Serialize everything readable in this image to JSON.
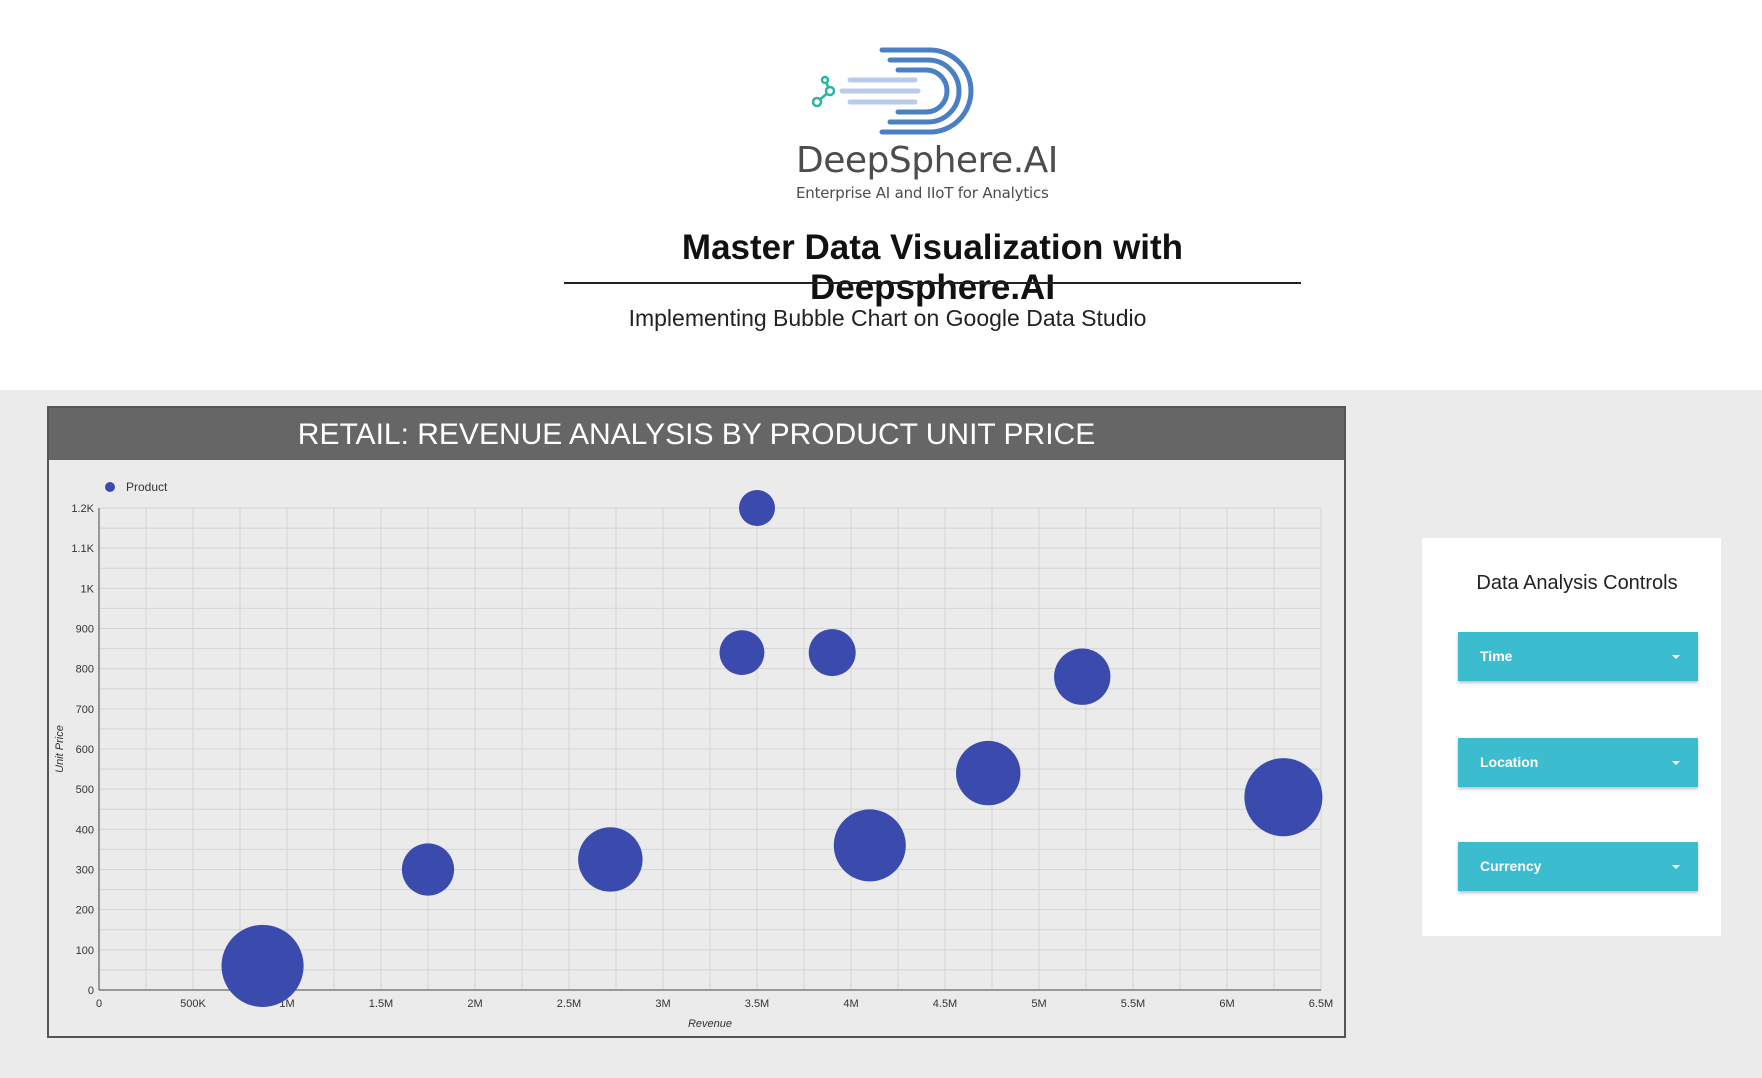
{
  "brand": {
    "logo_text": "DeepSphere.AI",
    "tagline": "Enterprise AI and IIoT for Analytics"
  },
  "header": {
    "title": "Master Data Visualization with Deepsphere.AI",
    "subtitle": "Implementing Bubble Chart on Google Data Studio"
  },
  "chart": {
    "header": "RETAIL: REVENUE ANALYSIS BY PRODUCT UNIT PRICE"
  },
  "chart_data": {
    "type": "scatter",
    "title": "RETAIL: REVENUE ANALYSIS BY PRODUCT UNIT PRICE",
    "xlabel": "Revenue",
    "ylabel": "Unit Price",
    "xlim": [
      0,
      6500000
    ],
    "ylim": [
      0,
      1200
    ],
    "grid": true,
    "legend_position": "top-left",
    "x_ticks": [
      0,
      500000,
      1000000,
      1500000,
      2000000,
      2500000,
      3000000,
      3500000,
      4000000,
      4500000,
      5000000,
      5500000,
      6000000,
      6500000
    ],
    "x_tick_labels": [
      "0",
      "500K",
      "1M",
      "1.5M",
      "2M",
      "2.5M",
      "3M",
      "3.5M",
      "4M",
      "4.5M",
      "5M",
      "5.5M",
      "6M",
      "6.5M"
    ],
    "y_ticks": [
      0,
      100,
      200,
      300,
      400,
      500,
      600,
      700,
      800,
      900,
      1000,
      1100,
      1200
    ],
    "y_tick_labels": [
      "0",
      "100",
      "200",
      "300",
      "400",
      "500",
      "600",
      "700",
      "800",
      "900",
      "1K",
      "1.1K",
      "1.2K"
    ],
    "series": [
      {
        "name": "Product",
        "color": "#3a4aad",
        "points": [
          {
            "x": 3500000,
            "y": 1200,
            "size": 1
          },
          {
            "x": 3420000,
            "y": 840,
            "size": 1.55
          },
          {
            "x": 3900000,
            "y": 840,
            "size": 1.7
          },
          {
            "x": 5230000,
            "y": 780,
            "size": 2.45
          },
          {
            "x": 4730000,
            "y": 540,
            "size": 3.2
          },
          {
            "x": 6300000,
            "y": 480,
            "size": 4.7
          },
          {
            "x": 4100000,
            "y": 360,
            "size": 4.0
          },
          {
            "x": 2720000,
            "y": 325,
            "size": 3.2
          },
          {
            "x": 1750000,
            "y": 300,
            "size": 2.1
          },
          {
            "x": 870000,
            "y": 60,
            "size": 5.2
          }
        ]
      }
    ]
  },
  "controls": {
    "title": "Data Analysis Controls",
    "items": [
      {
        "label": "Time"
      },
      {
        "label": "Location"
      },
      {
        "label": "Currency"
      }
    ]
  },
  "colors": {
    "header_bar": "#666666",
    "bubble": "#3a4aad",
    "dropdown": "#3bbccf",
    "canvas_bg": "#ebebeb"
  }
}
